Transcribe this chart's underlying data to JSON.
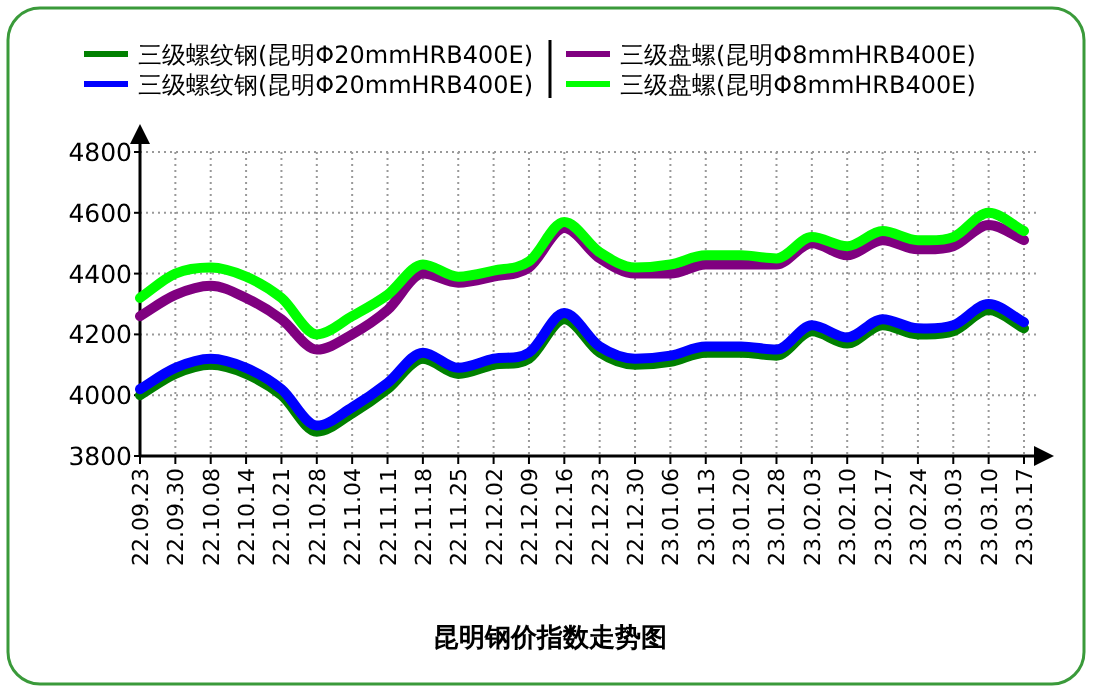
{
  "chart_data": {
    "type": "line",
    "title": "昆明钢价指数走势图",
    "categories": [
      "22.09.23",
      "22.09.30",
      "22.10.08",
      "22.10.14",
      "22.10.21",
      "22.10.28",
      "22.11.04",
      "22.11.11",
      "22.11.18",
      "22.11.25",
      "22.12.02",
      "22.12.09",
      "22.12.16",
      "22.12.23",
      "22.12.30",
      "23.01.06",
      "23.01.13",
      "23.01.20",
      "23.01.28",
      "23.02.03",
      "23.02.10",
      "23.02.17",
      "23.02.24",
      "23.03.03",
      "23.03.10",
      "23.03.17"
    ],
    "series": [
      {
        "name": "三级螺纹钢(昆明Φ20mmHRB400E)",
        "color": "#008000",
        "values": [
          4000,
          4070,
          4100,
          4070,
          4000,
          3880,
          3940,
          4020,
          4120,
          4070,
          4100,
          4120,
          4250,
          4140,
          4100,
          4110,
          4140,
          4140,
          4130,
          4210,
          4170,
          4230,
          4200,
          4210,
          4280,
          4220
        ]
      },
      {
        "name": "三级螺纹钢(昆明Φ20mmHRB400E)",
        "color": "#0000ff",
        "values": [
          4020,
          4090,
          4120,
          4090,
          4020,
          3900,
          3960,
          4040,
          4140,
          4090,
          4120,
          4140,
          4270,
          4160,
          4120,
          4130,
          4160,
          4160,
          4150,
          4230,
          4190,
          4250,
          4220,
          4230,
          4300,
          4240
        ]
      },
      {
        "name": "三级盘螺(昆明Φ8mmHRB400E)",
        "color": "#800080",
        "values": [
          4260,
          4330,
          4360,
          4320,
          4250,
          4150,
          4200,
          4280,
          4400,
          4370,
          4390,
          4420,
          4550,
          4450,
          4400,
          4400,
          4430,
          4430,
          4430,
          4500,
          4460,
          4510,
          4480,
          4490,
          4560,
          4510
        ]
      },
      {
        "name": "三级盘螺(昆明Φ8mmHRB400E)",
        "color": "#00ff00",
        "values": [
          4320,
          4400,
          4420,
          4390,
          4320,
          4200,
          4260,
          4330,
          4430,
          4390,
          4410,
          4440,
          4570,
          4470,
          4420,
          4430,
          4460,
          4460,
          4450,
          4520,
          4490,
          4540,
          4510,
          4520,
          4600,
          4540
        ]
      }
    ],
    "ylim": [
      3800,
      4800
    ],
    "yticks": [
      3800,
      4000,
      4200,
      4400,
      4600,
      4800
    ],
    "grid": true,
    "legend": "top"
  }
}
